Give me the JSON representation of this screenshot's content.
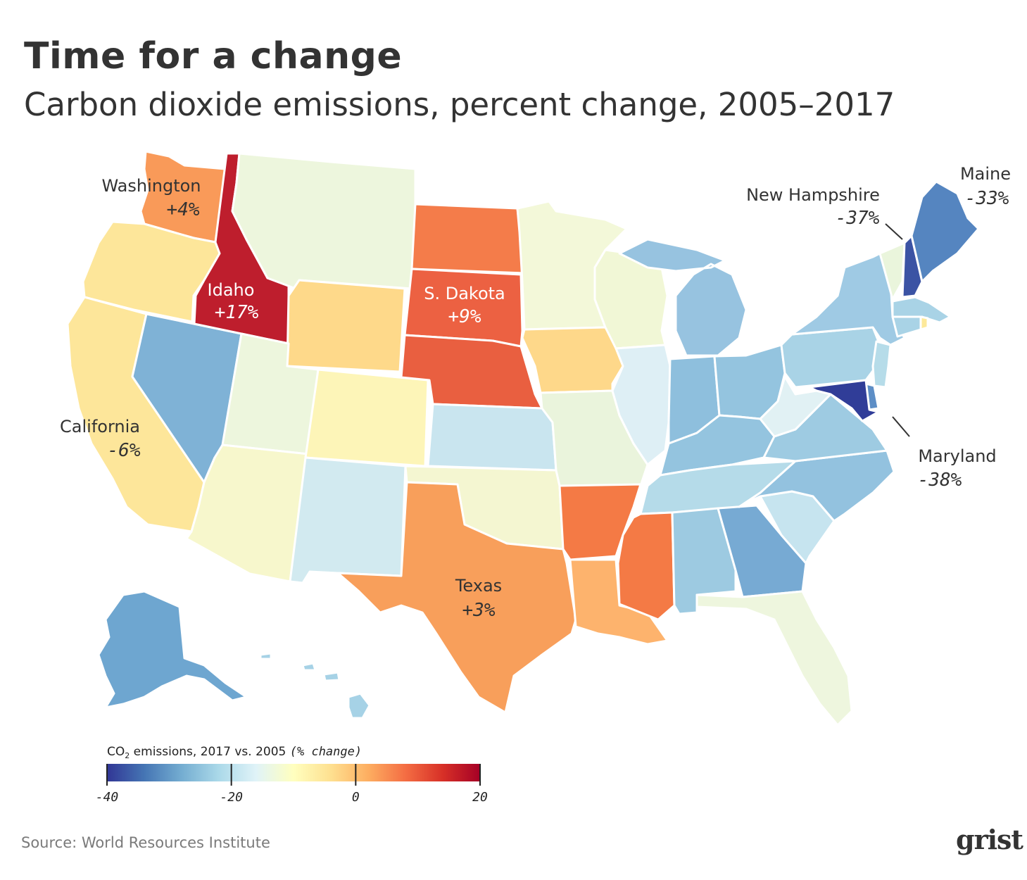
{
  "title": "Time for a change",
  "subtitle": "Carbon dioxide emissions, percent change, 2005–2017",
  "source": "Source: World Resources Institute",
  "logo_text": "grist",
  "colors": {
    "background": "#ffffff",
    "state_border": "#ffffff",
    "text": "#333333",
    "source_text": "#7a7a7a",
    "logo_accent": "#e8742c"
  },
  "legend": {
    "title_prefix": "CO",
    "title_sub": "2",
    "title_rest": " emissions, 2017 vs. 2005 ",
    "title_units": "(% change)",
    "ticks": [
      "-40",
      "-20",
      "0",
      "20"
    ],
    "min": -40,
    "max": 20,
    "gradient": [
      "#313695",
      "#4575b4",
      "#74add1",
      "#abd9e9",
      "#e0f3f8",
      "#ffffbf",
      "#fee090",
      "#fdae61",
      "#f46d43",
      "#d73027",
      "#a50026"
    ]
  },
  "labels": {
    "washington": {
      "name": "Washington",
      "value": "+4%"
    },
    "idaho": {
      "name": "Idaho",
      "value": "+17%"
    },
    "south_dakota": {
      "name": "S. Dakota",
      "value": "+9%"
    },
    "california": {
      "name": "California",
      "value": "-6%"
    },
    "texas": {
      "name": "Texas",
      "value": "+3%"
    },
    "maine": {
      "name": "Maine",
      "value": "-33%"
    },
    "new_hampshire": {
      "name": "New Hampshire",
      "value": "-37%"
    },
    "maryland": {
      "name": "Maryland",
      "value": "-38%"
    }
  },
  "state_colors": {
    "WA": "#f99a59",
    "OR": "#fde69a",
    "CA": "#fde69a",
    "NV": "#7fb2d6",
    "ID": "#be1e2d",
    "MT": "#edf6dd",
    "WY": "#fed98a",
    "UT": "#edf6dd",
    "AZ": "#f7f7cc",
    "CO": "#fdf5b8",
    "NM": "#d2eaf0",
    "ND": "#f47c4a",
    "SD": "#ec6142",
    "NE": "#e95f40",
    "KS": "#c9e5ef",
    "OK": "#f4f6d1",
    "TX": "#f89f5b",
    "MN": "#f3f8d9",
    "IA": "#fed88a",
    "MO": "#eaf4dc",
    "AR": "#f47a45",
    "LA": "#fdb36d",
    "WI": "#f1f7d6",
    "IL": "#deeff5",
    "MI": "#97c3e0",
    "IN": "#8ebfdd",
    "OH": "#94c4df",
    "KY": "#94c4df",
    "TN": "#b5dbe9",
    "MS": "#f47a45",
    "AL": "#9dcae1",
    "GA": "#77aad3",
    "FL": "#eef6de",
    "SC": "#c6e4ef",
    "NC": "#93c2df",
    "VA": "#9ecbe2",
    "WV": "#e1f1f4",
    "PA": "#a9d3e6",
    "NY": "#9fcae4",
    "VT": "#eaf5dc",
    "NH": "#3b53a4",
    "ME": "#5585c0",
    "MA": "#a9d3e6",
    "RI": "#fde99a",
    "CT": "#a9d3e6",
    "NJ": "#b6dce9",
    "DE": "#5d8ec6",
    "MD": "#303d98",
    "AK": "#6ea6d0",
    "HI": "#a6d2e6"
  }
}
